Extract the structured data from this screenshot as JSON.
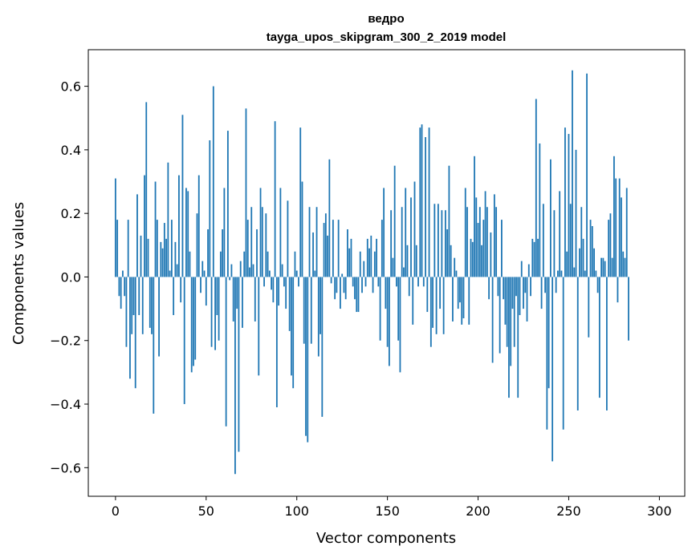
{
  "chart_data": {
    "type": "bar",
    "title": "ведро",
    "subtitle": "tayga_upos_skipgram_300_2_2019 model",
    "xlabel": "Vector components",
    "ylabel": "Components values",
    "xlim": [
      -15,
      314
    ],
    "ylim": [
      -0.69,
      0.715
    ],
    "xticks": [
      0,
      50,
      100,
      150,
      200,
      250,
      300
    ],
    "yticks": [
      -0.6,
      -0.4,
      -0.2,
      0.0,
      0.2,
      0.4,
      0.6
    ],
    "ytick_labels": [
      "−0.6",
      "−0.4",
      "−0.2",
      "0.0",
      "0.2",
      "0.4",
      "0.6"
    ],
    "bar_color": "#1f77b4",
    "values": [
      0.31,
      0.18,
      -0.06,
      -0.1,
      0.02,
      -0.06,
      -0.22,
      0.18,
      -0.32,
      -0.18,
      -0.12,
      -0.35,
      0.26,
      -0.12,
      0.13,
      -0.18,
      0.32,
      0.55,
      0.12,
      -0.16,
      -0.18,
      -0.43,
      0.3,
      0.18,
      -0.25,
      0.11,
      0.09,
      0.17,
      0.12,
      0.36,
      0.02,
      0.18,
      -0.12,
      0.11,
      0.04,
      0.32,
      -0.08,
      0.51,
      -0.4,
      0.28,
      0.27,
      0.08,
      -0.3,
      -0.28,
      -0.26,
      0.2,
      0.32,
      -0.05,
      0.05,
      0.02,
      -0.09,
      0.15,
      0.43,
      -0.22,
      0.6,
      -0.23,
      -0.12,
      -0.2,
      0.08,
      0.15,
      0.28,
      -0.47,
      0.46,
      -0.01,
      0.04,
      -0.14,
      -0.62,
      -0.1,
      -0.55,
      0.05,
      -0.16,
      0.08,
      0.53,
      0.18,
      0.03,
      0.22,
      0.04,
      -0.14,
      0.15,
      -0.31,
      0.28,
      0.22,
      -0.03,
      0.2,
      0.08,
      0.02,
      -0.04,
      -0.08,
      0.49,
      -0.41,
      -0.09,
      0.28,
      0.04,
      -0.03,
      -0.1,
      0.24,
      -0.17,
      -0.31,
      -0.35,
      0.08,
      0.02,
      -0.03,
      0.47,
      0.3,
      -0.21,
      -0.5,
      -0.52,
      0.22,
      -0.21,
      0.14,
      0.02,
      0.22,
      -0.25,
      -0.18,
      -0.44,
      0.17,
      0.2,
      0.13,
      0.37,
      -0.02,
      0.18,
      -0.07,
      -0.05,
      0.18,
      -0.1,
      0.01,
      -0.05,
      -0.07,
      0.15,
      0.09,
      0.12,
      -0.03,
      -0.07,
      -0.11,
      -0.11,
      0.08,
      -0.05,
      0.05,
      -0.03,
      0.12,
      0.09,
      0.13,
      -0.05,
      0.08,
      0.12,
      -0.03,
      -0.2,
      0.18,
      0.28,
      -0.1,
      -0.22,
      -0.28,
      0.21,
      0.06,
      0.35,
      -0.03,
      -0.2,
      -0.3,
      0.22,
      0.03,
      0.28,
      0.1,
      -0.06,
      0.25,
      -0.15,
      0.3,
      0.1,
      -0.03,
      0.47,
      0.48,
      -0.03,
      0.44,
      -0.11,
      0.47,
      -0.22,
      -0.16,
      0.23,
      -0.18,
      0.23,
      -0.1,
      0.21,
      -0.18,
      0.21,
      0.15,
      0.35,
      0.1,
      -0.14,
      0.06,
      0.02,
      -0.1,
      -0.08,
      -0.15,
      -0.13,
      0.28,
      0.22,
      -0.15,
      0.12,
      0.11,
      0.38,
      0.25,
      0.17,
      0.22,
      0.1,
      0.18,
      0.27,
      0.22,
      -0.07,
      0.14,
      -0.27,
      0.26,
      0.22,
      -0.06,
      -0.24,
      0.18,
      -0.07,
      -0.15,
      -0.22,
      -0.38,
      -0.28,
      -0.1,
      -0.22,
      -0.06,
      -0.38,
      -0.12,
      0.05,
      -0.1,
      -0.05,
      -0.14,
      0.04,
      -0.06,
      0.12,
      0.11,
      0.56,
      0.12,
      0.42,
      -0.1,
      0.23,
      -0.05,
      -0.48,
      -0.35,
      0.37,
      -0.58,
      0.21,
      -0.05,
      0.02,
      0.27,
      0.02,
      -0.48,
      0.47,
      0.08,
      0.45,
      0.23,
      0.65,
      0.03,
      0.4,
      -0.42,
      0.09,
      0.22,
      0.12,
      0.02,
      0.64,
      -0.19,
      0.18,
      0.16,
      0.09,
      0.02,
      -0.05,
      -0.38,
      0.06,
      0.06,
      0.05,
      -0.42,
      0.18,
      0.2,
      0.06,
      0.38,
      0.31,
      -0.08,
      0.31,
      0.25,
      0.08,
      0.06,
      0.28,
      -0.2
    ]
  }
}
